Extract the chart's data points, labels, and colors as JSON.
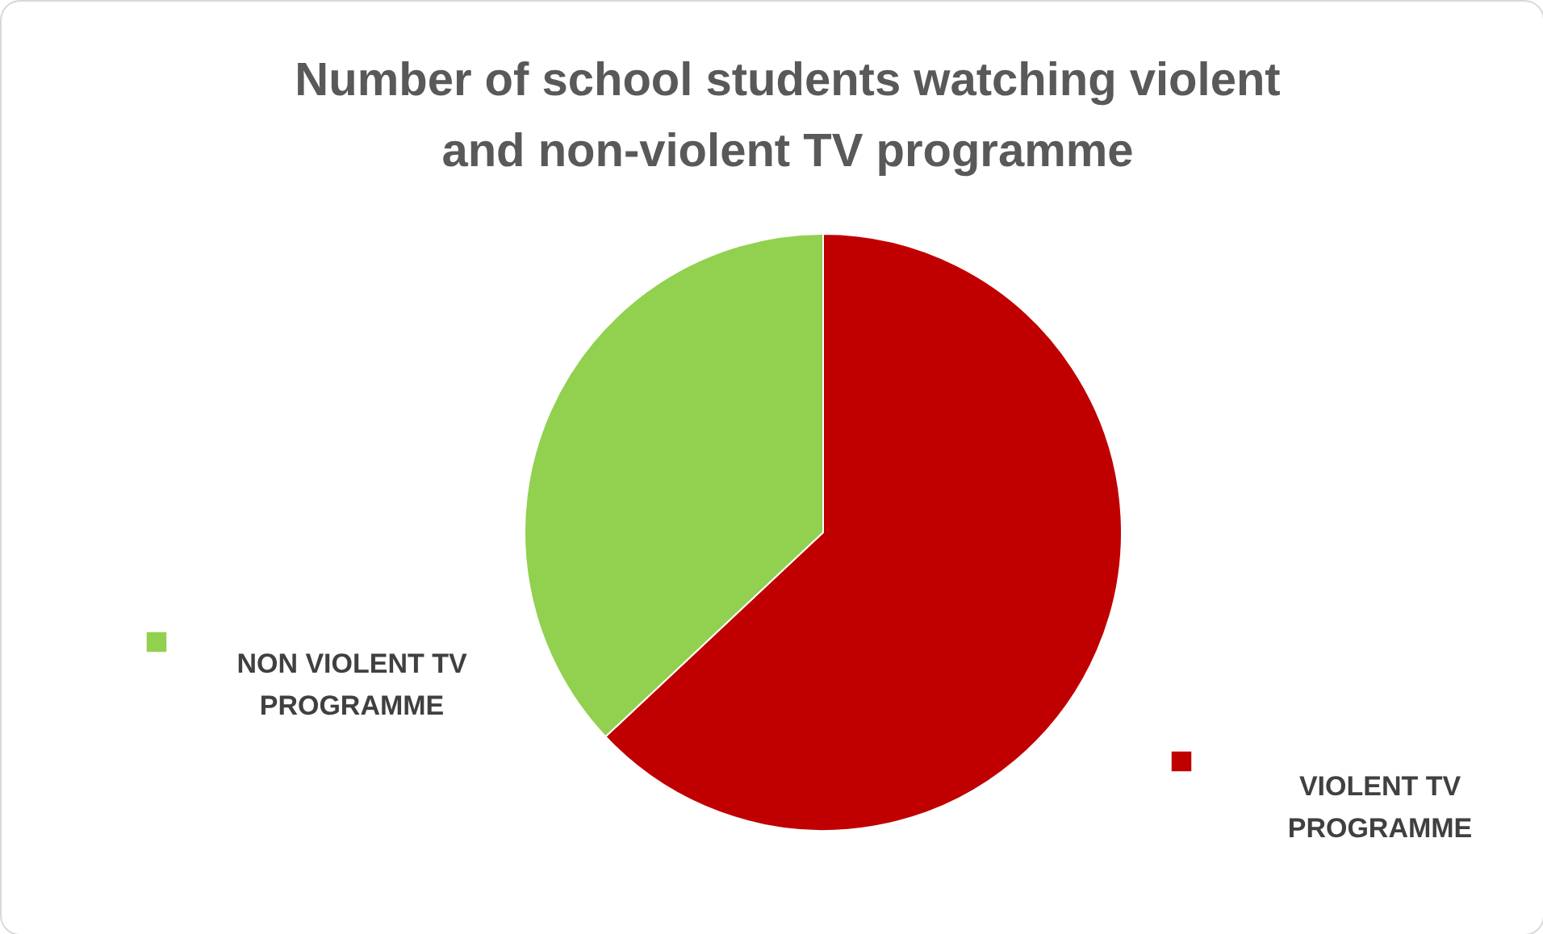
{
  "chart_data": {
    "type": "pie",
    "title": "Number of school students watching violent and non-violent TV programme",
    "categories": [
      "VIOLENT TV PROGRAMME",
      "NON VIOLENT TV PROGRAMME"
    ],
    "values": [
      63,
      37
    ],
    "colors": [
      "#c00000",
      "#92d050"
    ]
  }
}
